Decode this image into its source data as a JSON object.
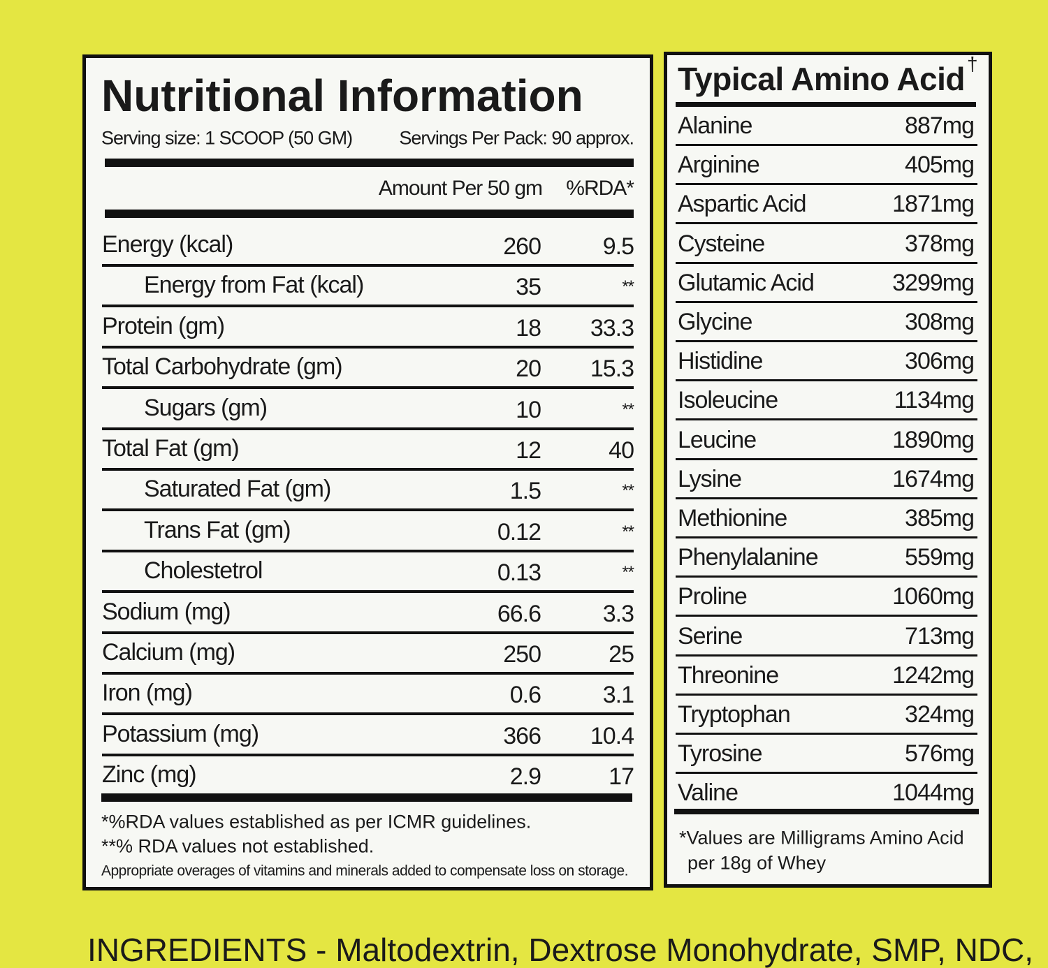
{
  "nutrition": {
    "title": "Nutritional Information",
    "serving_size": "Serving size: 1 SCOOP (50 GM)",
    "servings_per_pack": "Servings Per Pack: 90 approx.",
    "column_headers": [
      "Amount Per 50 gm",
      "%RDA*"
    ],
    "rows": [
      {
        "label": "Energy (kcal)",
        "amount": "260",
        "rda": "9.5"
      },
      {
        "label": "Energy from Fat (kcal)",
        "amount": "35",
        "rda": "**",
        "indent": true
      },
      {
        "label": "Protein (gm)",
        "amount": "18",
        "rda": "33.3"
      },
      {
        "label": "Total Carbohydrate (gm)",
        "amount": "20",
        "rda": "15.3"
      },
      {
        "label": "Sugars (gm)",
        "amount": "10",
        "rda": "**",
        "indent": true
      },
      {
        "label": "Total Fat (gm)",
        "amount": "12",
        "rda": "40"
      },
      {
        "label": "Saturated Fat (gm)",
        "amount": "1.5",
        "rda": "**",
        "indent": true
      },
      {
        "label": "Trans Fat (gm)",
        "amount": "0.12",
        "rda": "**",
        "indent": true
      },
      {
        "label": "Cholestetrol",
        "amount": "0.13",
        "rda": "**",
        "indent": true
      },
      {
        "label": "Sodium (mg)",
        "amount": "66.6",
        "rda": "3.3"
      },
      {
        "label": "Calcium (mg)",
        "amount": "250",
        "rda": "25"
      },
      {
        "label": "Iron (mg)",
        "amount": "0.6",
        "rda": "3.1"
      },
      {
        "label": "Potassium (mg)",
        "amount": "366",
        "rda": "10.4"
      },
      {
        "label": "Zinc (mg)",
        "amount": "2.9",
        "rda": "17"
      }
    ],
    "footnotes": [
      "*%RDA values established as per ICMR guidelines.",
      "**% RDA values not established.",
      "Appropriate overages of vitamins and minerals added to compensate loss on storage."
    ]
  },
  "amino": {
    "title": "Typical Amino Acid",
    "title_mark": "†",
    "rows": [
      {
        "name": "Alanine",
        "value": "887mg"
      },
      {
        "name": "Arginine",
        "value": "405mg"
      },
      {
        "name": "Aspartic Acid",
        "value": "1871mg"
      },
      {
        "name": "Cysteine",
        "value": "378mg"
      },
      {
        "name": "Glutamic Acid",
        "value": "3299mg"
      },
      {
        "name": "Glycine",
        "value": "308mg"
      },
      {
        "name": "Histidine",
        "value": "306mg"
      },
      {
        "name": "Isoleucine",
        "value": "1134mg"
      },
      {
        "name": "Leucine",
        "value": "1890mg"
      },
      {
        "name": "Lysine",
        "value": "1674mg"
      },
      {
        "name": "Methionine",
        "value": "385mg"
      },
      {
        "name": "Phenylalanine",
        "value": "559mg"
      },
      {
        "name": "Proline",
        "value": "1060mg"
      },
      {
        "name": "Serine",
        "value": "713mg"
      },
      {
        "name": "Threonine",
        "value": "1242mg"
      },
      {
        "name": "Tryptophan",
        "value": "324mg"
      },
      {
        "name": "Tyrosine",
        "value": "576mg"
      },
      {
        "name": "Valine",
        "value": "1044mg"
      }
    ],
    "footnote": [
      "*Values are Milligrams Amino Acid",
      "per 18g of Whey"
    ]
  },
  "ingredients": "INGREDIENTS - Maltodextrin, Dextrose Monohydrate, SMP, NDC,"
}
